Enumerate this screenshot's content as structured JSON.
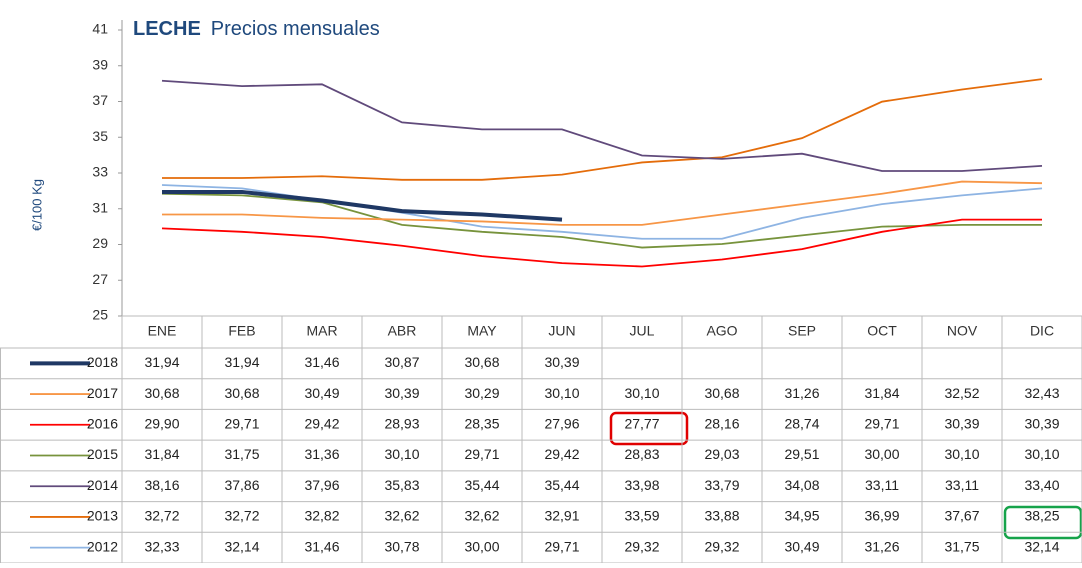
{
  "chart_data": {
    "type": "line",
    "title": "LECHE",
    "subtitle": "Precios mensuales",
    "y_label": "€/100 Kg",
    "categories": [
      "ENE",
      "FEB",
      "MAR",
      "ABR",
      "MAY",
      "JUN",
      "JUL",
      "AGO",
      "SEP",
      "OCT",
      "NOV",
      "DIC"
    ],
    "ylim": [
      25,
      41
    ],
    "yticks": [
      25,
      27,
      29,
      31,
      33,
      35,
      37,
      39,
      41
    ],
    "series": [
      {
        "name": "2018",
        "color": "#1f3864",
        "values": [
          31.94,
          31.94,
          31.46,
          30.87,
          30.68,
          30.39,
          null,
          null,
          null,
          null,
          null,
          null
        ],
        "value_labels": [
          "31,94",
          "31,94",
          "31,46",
          "30,87",
          "30,68",
          "30,39",
          null,
          null,
          null,
          null,
          null,
          null
        ]
      },
      {
        "name": "2017",
        "color": "#f79646",
        "values": [
          30.68,
          30.68,
          30.49,
          30.39,
          30.29,
          30.1,
          30.1,
          30.68,
          31.26,
          31.84,
          32.52,
          32.43
        ],
        "value_labels": [
          "30,68",
          "30,68",
          "30,49",
          "30,39",
          "30,29",
          "30,10",
          "30,10",
          "30,68",
          "31,26",
          "31,84",
          "32,52",
          "32,43"
        ]
      },
      {
        "name": "2016",
        "color": "#ff0000",
        "values": [
          29.9,
          29.71,
          29.42,
          28.93,
          28.35,
          27.96,
          27.77,
          28.16,
          28.74,
          29.71,
          30.39,
          30.39
        ],
        "value_labels": [
          "29,90",
          "29,71",
          "29,42",
          "28,93",
          "28,35",
          "27,96",
          "27,77",
          "28,16",
          "28,74",
          "29,71",
          "30,39",
          "30,39"
        ]
      },
      {
        "name": "2015",
        "color": "#77933c",
        "values": [
          31.84,
          31.75,
          31.36,
          30.1,
          29.71,
          29.42,
          28.83,
          29.03,
          29.51,
          30.0,
          30.1,
          30.1
        ],
        "value_labels": [
          "31,84",
          "31,75",
          "31,36",
          "30,10",
          "29,71",
          "29,42",
          "28,83",
          "29,03",
          "29,51",
          "30,00",
          "30,10",
          "30,10"
        ]
      },
      {
        "name": "2014",
        "color": "#604a7b",
        "values": [
          38.16,
          37.86,
          37.96,
          35.83,
          35.44,
          35.44,
          33.98,
          33.79,
          34.08,
          33.11,
          33.11,
          33.4
        ],
        "value_labels": [
          "38,16",
          "37,86",
          "37,96",
          "35,83",
          "35,44",
          "35,44",
          "33,98",
          "33,79",
          "34,08",
          "33,11",
          "33,11",
          "33,40"
        ]
      },
      {
        "name": "2013",
        "color": "#e46c0a",
        "values": [
          32.72,
          32.72,
          32.82,
          32.62,
          32.62,
          32.91,
          33.59,
          33.88,
          34.95,
          36.99,
          37.67,
          38.25
        ],
        "value_labels": [
          "32,72",
          "32,72",
          "32,82",
          "32,62",
          "32,62",
          "32,91",
          "33,59",
          "33,88",
          "34,95",
          "36,99",
          "37,67",
          "38,25"
        ]
      },
      {
        "name": "2012",
        "color": "#8eb4e3",
        "values": [
          32.33,
          32.14,
          31.46,
          30.78,
          30.0,
          29.71,
          29.32,
          29.32,
          30.49,
          31.26,
          31.75,
          32.14
        ],
        "value_labels": [
          "32,33",
          "32,14",
          "31,46",
          "30,78",
          "30,00",
          "29,71",
          "29,32",
          "29,32",
          "30,49",
          "31,26",
          "31,75",
          "32,14"
        ]
      }
    ]
  }
}
